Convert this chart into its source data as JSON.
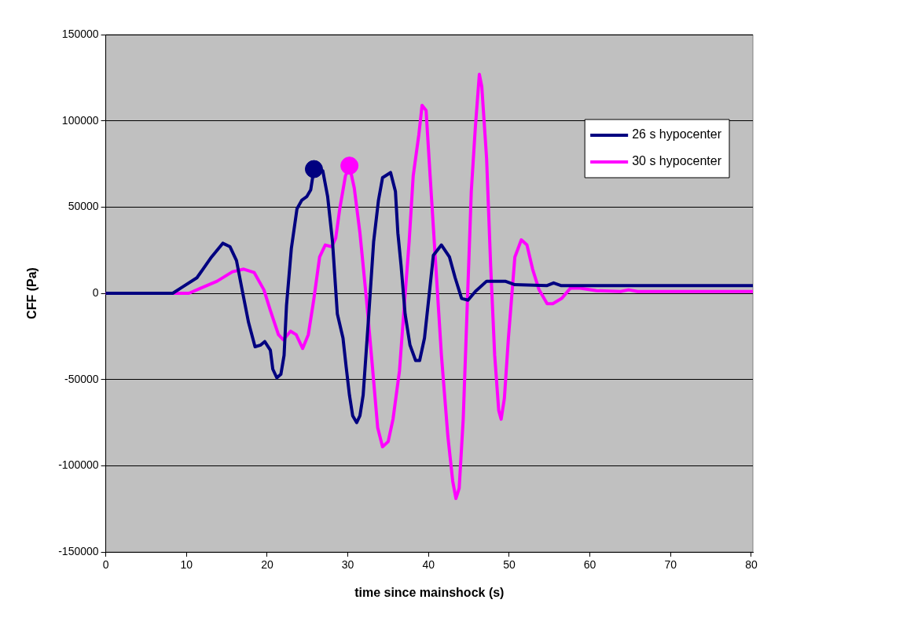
{
  "chart_data": {
    "type": "line",
    "xlabel": "time since mainshock (s)",
    "ylabel": "CFF (Pa)",
    "xlim": [
      0,
      80.2
    ],
    "xticks": [
      0,
      10,
      20,
      30,
      40,
      50,
      60,
      70,
      80
    ],
    "ylim": [
      -150000,
      150000
    ],
    "yticks": [
      -150000,
      -100000,
      -50000,
      0,
      50000,
      100000,
      150000
    ],
    "grid": "y",
    "legend": "top right",
    "marker": "none",
    "line_style": "solid",
    "series": [
      {
        "name": "26 s hypocenter",
        "color": "#000080",
        "x": [
          0,
          8.3,
          9.3,
          11.3,
          13.1,
          14.5,
          15.4,
          16.2,
          16.9,
          17.7,
          18.5,
          19.2,
          19.7,
          20.4,
          20.7,
          21.2,
          21.7,
          22.1,
          22.4,
          23,
          23.7,
          24.3,
          24.9,
          25.4,
          25.8,
          26.9,
          27.5,
          28.1,
          28.7,
          29.4,
          29.8,
          30.2,
          30.6,
          31.1,
          31.5,
          31.9,
          32.6,
          33.2,
          33.8,
          34.3,
          35.3,
          35.9,
          36.2,
          36.6,
          37.1,
          37.7,
          38.4,
          38.9,
          39.5,
          40.1,
          40.6,
          41.6,
          42.6,
          43.3,
          44.1,
          44.9,
          45.8,
          47.2,
          49.5,
          50.7,
          54.7,
          55.5,
          56.4,
          80.2
        ],
        "values": [
          0,
          0,
          3000,
          9000,
          21000,
          29000,
          27000,
          19000,
          2000,
          -17000,
          -31000,
          -30000,
          -28000,
          -33000,
          -44000,
          -49000,
          -47000,
          -36000,
          -7000,
          26000,
          49000,
          54000,
          56000,
          60000,
          72000,
          71000,
          56000,
          30000,
          -12000,
          -26000,
          -43000,
          -59000,
          -71000,
          -75000,
          -71000,
          -59000,
          -12000,
          30000,
          54000,
          67000,
          70000,
          59000,
          35000,
          16000,
          -12000,
          -30000,
          -39000,
          -39000,
          -26000,
          0,
          22000,
          28000,
          21000,
          9000,
          -3000,
          -4000,
          1000,
          7000,
          7000,
          5000,
          4500,
          6000,
          4500,
          4500
        ]
      },
      {
        "name": "30 s hypocenter",
        "color": "#ff00ff",
        "x": [
          0,
          10.3,
          11.8,
          13.8,
          15.7,
          17.1,
          18.4,
          19.6,
          20.4,
          21.4,
          22,
          22.9,
          23.6,
          24.4,
          25.1,
          25.8,
          26.5,
          27.2,
          28,
          28.5,
          29,
          29.7,
          30.2,
          30.8,
          31.5,
          32.3,
          33,
          33.7,
          34.3,
          35,
          35.6,
          36.4,
          37,
          37.6,
          38.1,
          38.8,
          39.2,
          39.7,
          40.2,
          40.9,
          41.6,
          42.4,
          43,
          43.4,
          43.8,
          44.3,
          44.8,
          45.3,
          45.8,
          46.3,
          46.6,
          47.2,
          47.7,
          48.2,
          48.7,
          49,
          49.4,
          49.9,
          50.7,
          51.5,
          52.2,
          52.9,
          53.7,
          54.7,
          55.4,
          56.5,
          57.6,
          58.8,
          60.8,
          63.8,
          64.8,
          65.9,
          80.2
        ],
        "values": [
          0,
          0,
          3000,
          7000,
          12500,
          14000,
          12000,
          2000,
          -10000,
          -24000,
          -27000,
          -22000,
          -24000,
          -32000,
          -24000,
          -3000,
          21000,
          28000,
          27000,
          32000,
          49000,
          68000,
          74000,
          61000,
          35000,
          -3000,
          -40000,
          -78000,
          -89000,
          -86000,
          -73000,
          -45000,
          -7000,
          30000,
          68000,
          92000,
          109000,
          106000,
          68000,
          16000,
          -36000,
          -83000,
          -109000,
          -119000,
          -113000,
          -73000,
          -7000,
          59000,
          96000,
          127000,
          120000,
          78000,
          16000,
          -36000,
          -68000,
          -73000,
          -61000,
          -26000,
          21000,
          31000,
          28000,
          14000,
          2000,
          -6000,
          -6000,
          -3000,
          3000,
          3000,
          1500,
          1000,
          2000,
          1000,
          1000
        ]
      },
      {
        "type": "scatter",
        "marker": "circle",
        "color": "#000080",
        "x": [
          25.8
        ],
        "values": [
          72000
        ]
      },
      {
        "type": "scatter",
        "marker": "circle",
        "color": "#ff00ff",
        "x": [
          30.2
        ],
        "values": [
          74000
        ]
      }
    ]
  }
}
